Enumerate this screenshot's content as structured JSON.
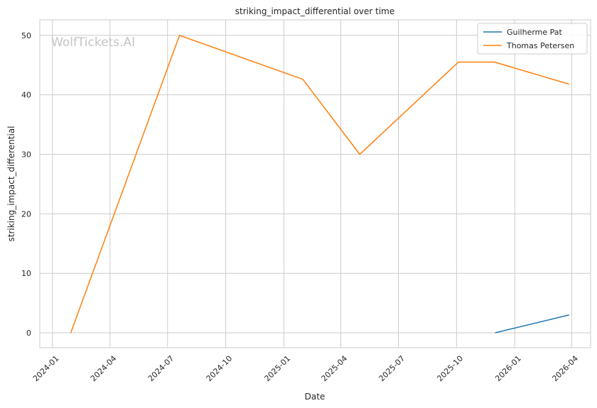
{
  "chart_data": {
    "type": "line",
    "title": "striking_impact_differential over time",
    "xlabel": "Date",
    "ylabel": "striking_impact_differential",
    "watermark": "WolfTickets.AI",
    "x_ticks": [
      "2024-01",
      "2024-04",
      "2024-07",
      "2024-10",
      "2025-01",
      "2025-04",
      "2025-07",
      "2025-10",
      "2026-01",
      "2026-04"
    ],
    "y_ticks": [
      0,
      10,
      20,
      30,
      40,
      50
    ],
    "xlim": [
      "2023-12-12",
      "2026-05-01"
    ],
    "ylim": [
      -2.5,
      52.6
    ],
    "grid": true,
    "legend": "top-right",
    "series": [
      {
        "name": "Guilherme Pat",
        "color": "#1f77b4",
        "points": [
          {
            "x": "2025-12-01",
            "y": 0
          },
          {
            "x": "2026-03-28",
            "y": 3
          }
        ]
      },
      {
        "name": "Thomas Petersen",
        "color": "#ff7f0e",
        "points": [
          {
            "x": "2024-01-30",
            "y": 0
          },
          {
            "x": "2024-07-20",
            "y": 50
          },
          {
            "x": "2025-01-31",
            "y": 42.6
          },
          {
            "x": "2025-05-01",
            "y": 30
          },
          {
            "x": "2025-10-04",
            "y": 45.5
          },
          {
            "x": "2025-11-30",
            "y": 45.5
          },
          {
            "x": "2026-03-28",
            "y": 41.8
          }
        ]
      }
    ]
  }
}
